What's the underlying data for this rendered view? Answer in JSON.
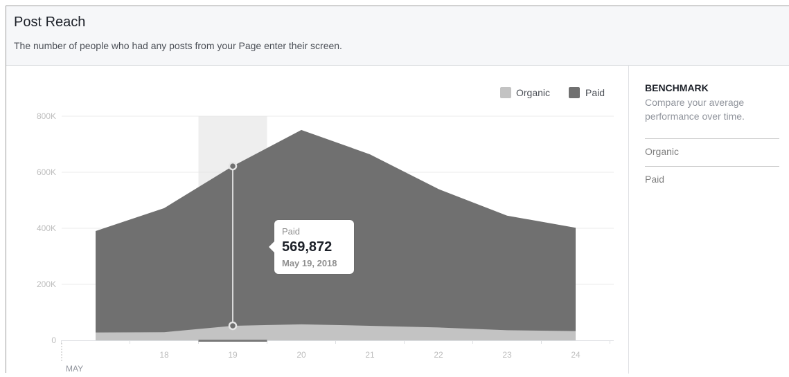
{
  "header": {
    "title": "Post Reach",
    "subtitle": "The number of people who had any posts from your Page enter their screen."
  },
  "legend": {
    "organic_label": "Organic",
    "paid_label": "Paid",
    "organic_color": "#c3c3c3",
    "paid_color": "#707070"
  },
  "sidebar": {
    "title": "BENCHMARK",
    "description": "Compare your average performance over time.",
    "items": [
      "Organic",
      "Paid"
    ]
  },
  "tooltip": {
    "series": "Paid",
    "value": "569,872",
    "date": "May 19, 2018"
  },
  "chart_data": {
    "type": "area",
    "stacked": true,
    "x": [
      17,
      18,
      19,
      20,
      21,
      22,
      23,
      24
    ],
    "x_tick_labels": [
      "",
      "18",
      "19",
      "20",
      "21",
      "22",
      "23",
      "24"
    ],
    "x_month_label": "MAY",
    "y_ticks": [
      "0",
      "200K",
      "400K",
      "600K",
      "800K"
    ],
    "ylim": [
      0,
      800000
    ],
    "grid": true,
    "legend_position": "top-right",
    "highlighted_x": 19,
    "series": [
      {
        "name": "Organic",
        "values": [
          28000,
          29000,
          52000,
          57000,
          52000,
          46000,
          36000,
          33000
        ]
      },
      {
        "name": "Paid",
        "values": [
          362000,
          443000,
          569872,
          694000,
          612000,
          494000,
          409000,
          369000
        ]
      }
    ]
  }
}
